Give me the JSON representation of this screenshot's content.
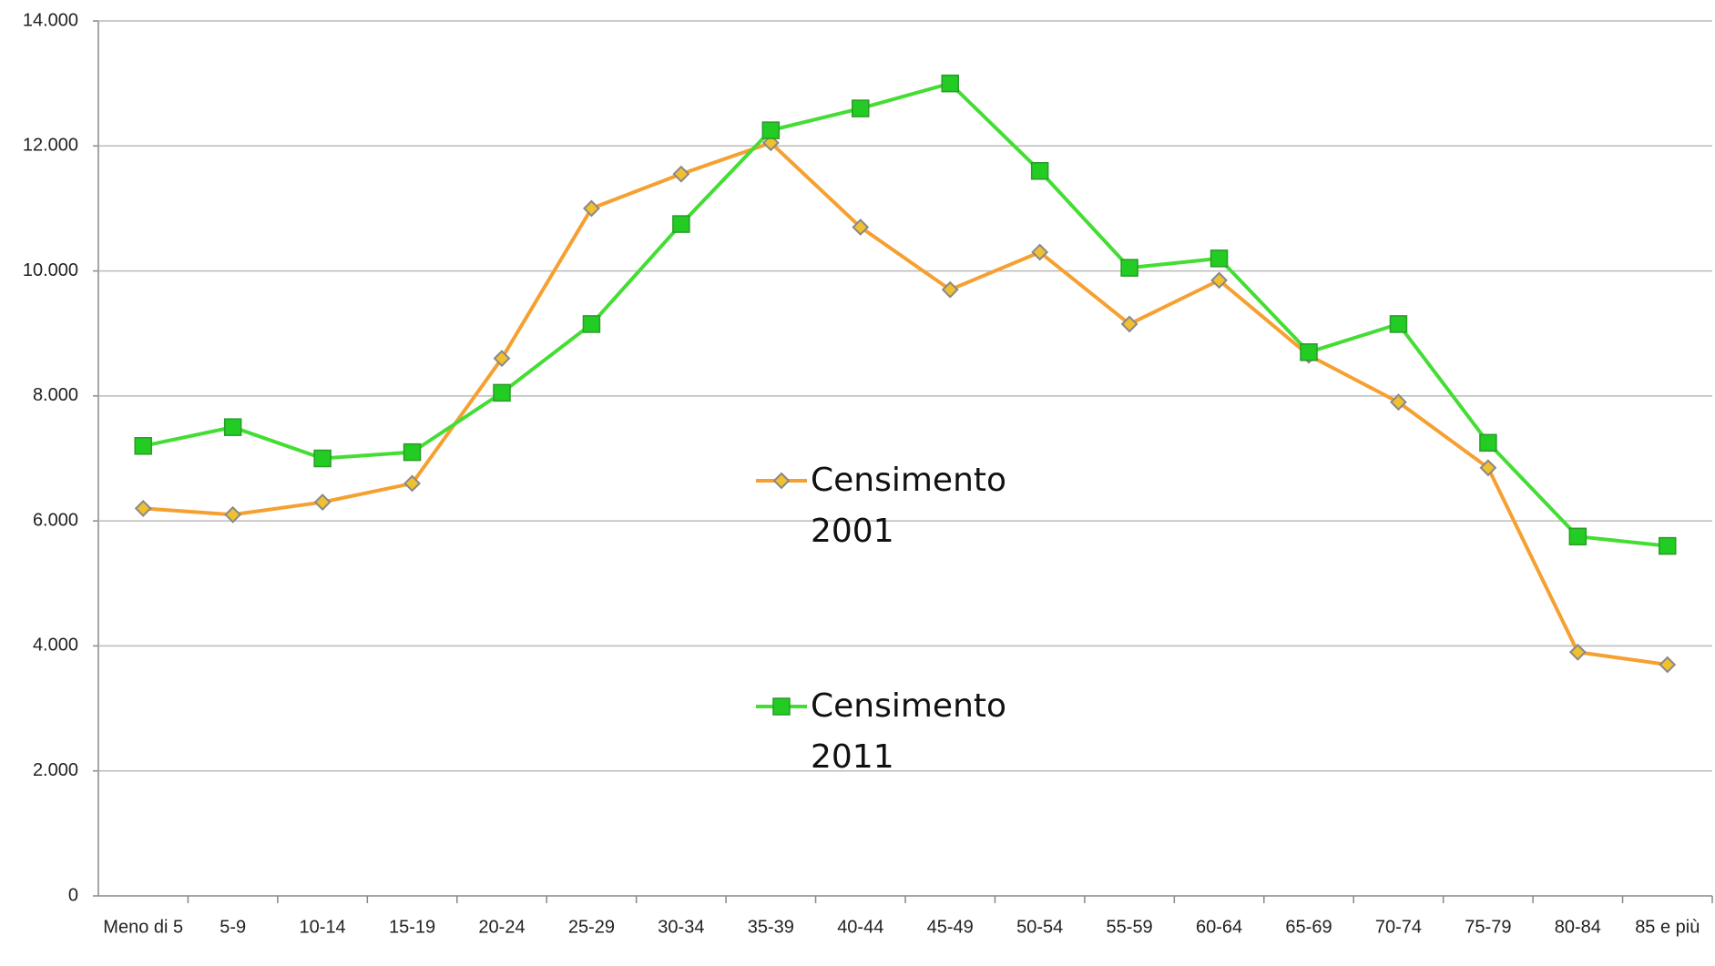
{
  "chart_data": {
    "type": "line",
    "categories": [
      "Meno di 5",
      "5-9",
      "10-14",
      "15-19",
      "20-24",
      "25-29",
      "30-34",
      "35-39",
      "40-44",
      "45-49",
      "50-54",
      "55-59",
      "60-64",
      "65-69",
      "70-74",
      "75-79",
      "80-84",
      "85 e più"
    ],
    "series": [
      {
        "name": "Censimento 2001",
        "color": "#f5a030",
        "marker": "diamond",
        "marker_color": "#f0c030",
        "values": [
          6200,
          6100,
          6300,
          6600,
          8600,
          11000,
          11550,
          12050,
          10700,
          9700,
          10300,
          9150,
          9850,
          8650,
          7900,
          6850,
          3900,
          3700
        ]
      },
      {
        "name": "Censimento 2011",
        "color": "#44dd33",
        "marker": "square",
        "marker_color": "#22cc22",
        "values": [
          7200,
          7500,
          7000,
          7100,
          8050,
          9150,
          10750,
          12250,
          12600,
          13000,
          11600,
          10050,
          10200,
          8700,
          9150,
          7250,
          5750,
          5600
        ]
      }
    ],
    "ylim": [
      0,
      14000
    ],
    "yticks": [
      0,
      {
        "value": 2000,
        "label": "2.000"
      },
      {
        "value": 4000,
        "label": "4.000"
      },
      {
        "value": 6000,
        "label": "6.000"
      },
      {
        "value": 8000,
        "label": "8.000"
      },
      {
        "value": 10000,
        "label": "10.000"
      },
      {
        "value": 12000,
        "label": "12.000"
      },
      {
        "value": 14000,
        "label": "14.000"
      }
    ],
    "grid": true,
    "legend": "center"
  }
}
